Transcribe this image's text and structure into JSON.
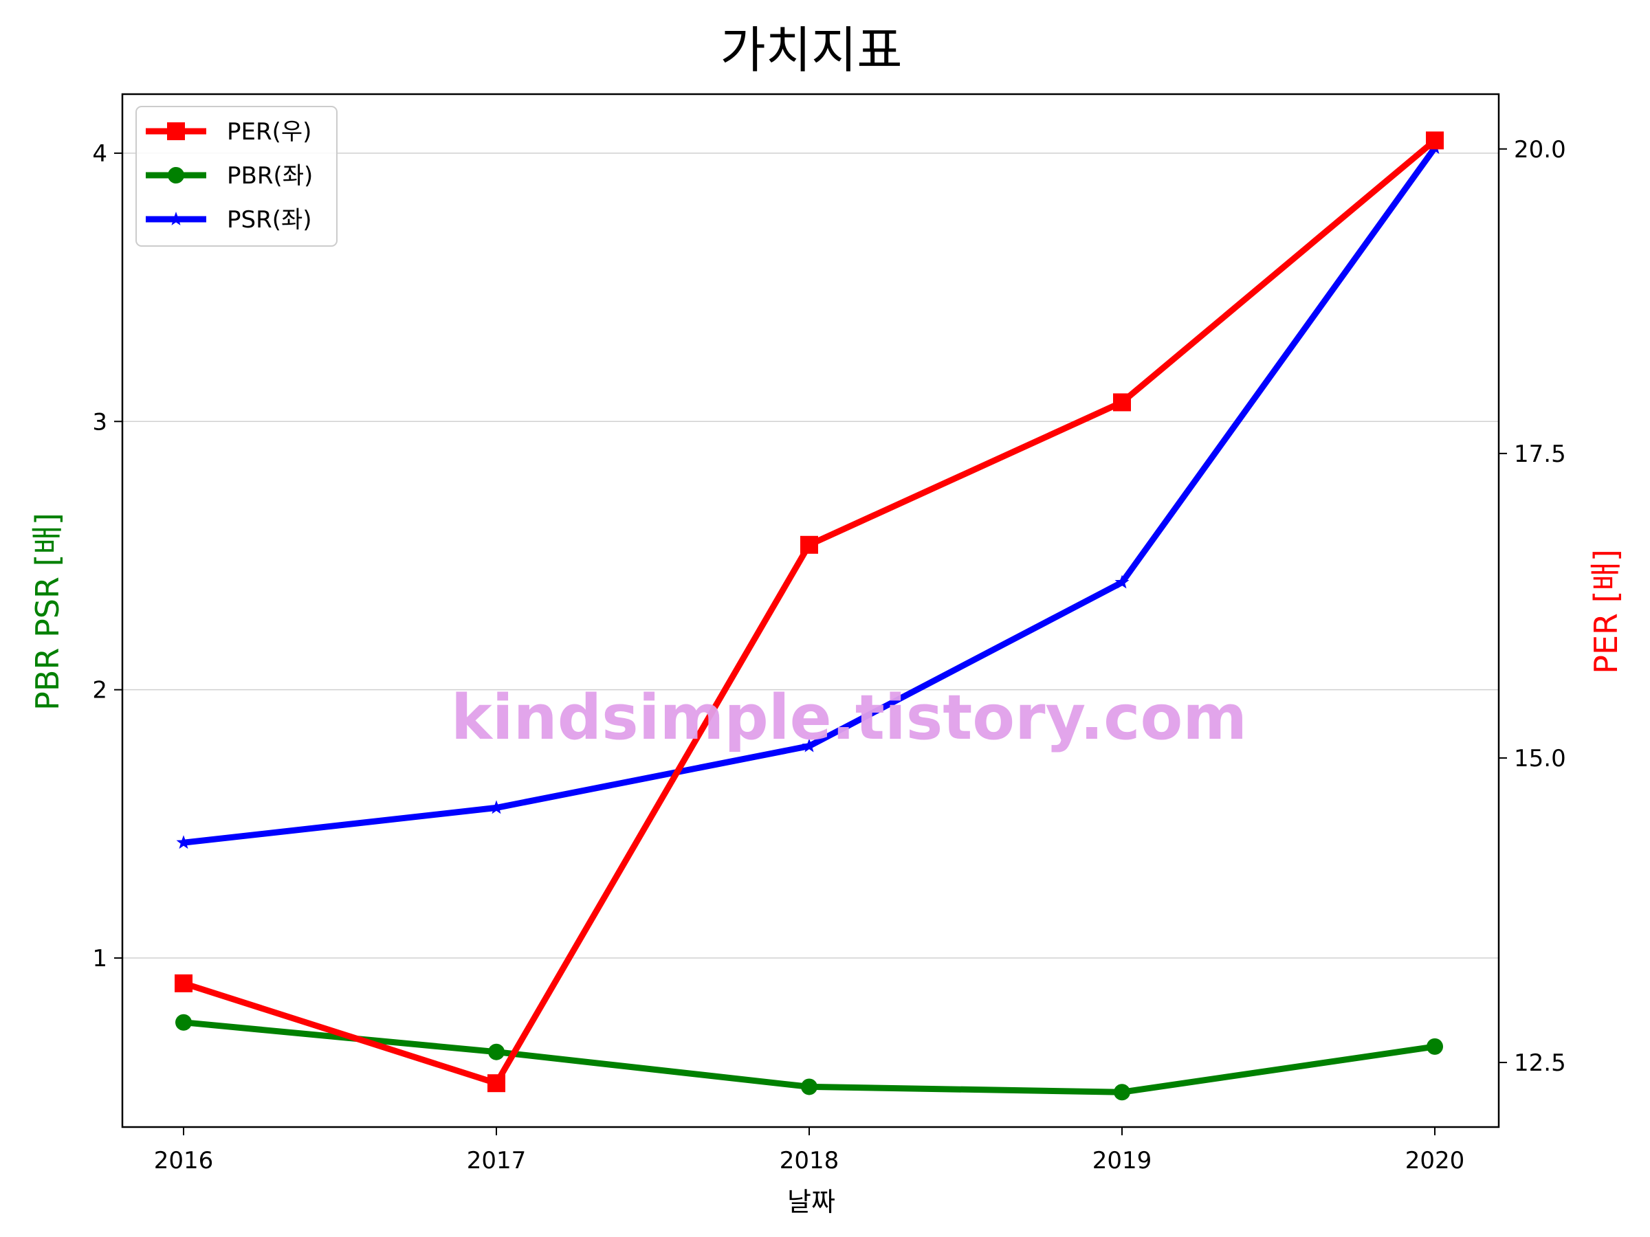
{
  "chart_data": {
    "type": "line",
    "title": "가치지표",
    "xlabel": "날짜",
    "ylabel_left": "PBR PSR [배]",
    "ylabel_right": "PER [배]",
    "x": [
      "2016",
      "2017",
      "2018",
      "2019",
      "2020"
    ],
    "ylim_left": [
      0.37,
      4.22
    ],
    "ylim_right": [
      11.97,
      20.45
    ],
    "yticks_left": [
      "1",
      "2",
      "3",
      "4"
    ],
    "yticks_right": [
      "12.5",
      "15.0",
      "17.5",
      "20.0"
    ],
    "grid": "horizontal, left axis",
    "legend_position": "upper-left",
    "series": [
      {
        "name": "PER(우)",
        "axis": "right",
        "color": "#ff0000",
        "marker": "square",
        "values": [
          13.15,
          12.33,
          16.75,
          17.92,
          20.07
        ]
      },
      {
        "name": "PBR(좌)",
        "axis": "left",
        "color": "#008000",
        "marker": "circle",
        "values": [
          0.76,
          0.65,
          0.52,
          0.5,
          0.67
        ]
      },
      {
        "name": "PSR(좌)",
        "axis": "left",
        "color": "#0000ff",
        "marker": "star",
        "values": [
          1.43,
          1.56,
          1.79,
          2.4,
          4.02
        ]
      }
    ],
    "watermark": "kindsimple.tistory.com"
  }
}
